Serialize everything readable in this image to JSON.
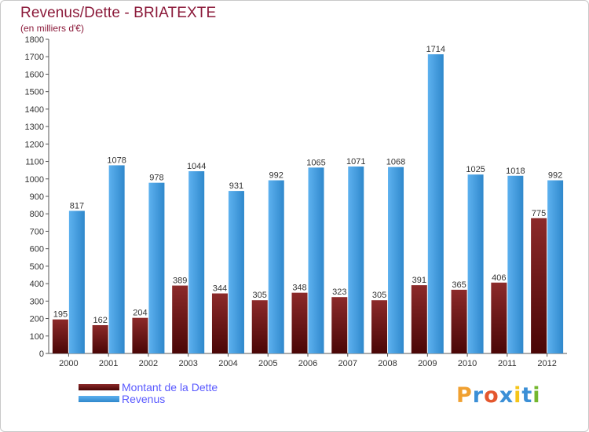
{
  "header": {
    "title": "Revenus/Dette - BRIATEXTE",
    "subtitle": "(en milliers d'€)"
  },
  "legend": {
    "items": [
      {
        "label": "Montant de la Dette",
        "color": "#7a1010"
      },
      {
        "label": "Revenus",
        "color": "#4aa3e6"
      }
    ]
  },
  "logo": {
    "letters": [
      "P",
      "r",
      "o",
      "x",
      "i",
      "t",
      "i"
    ],
    "colors": [
      "#f0a030",
      "#3b8fd6",
      "#e4572e",
      "#3b8fd6",
      "#f5c518",
      "#3b8fd6",
      "#74b72e"
    ]
  },
  "chart_data": {
    "type": "bar",
    "title": "Revenus/Dette - BRIATEXTE",
    "subtitle": "(en milliers d'€)",
    "categories": [
      "2000",
      "2001",
      "2002",
      "2003",
      "2004",
      "2005",
      "2006",
      "2007",
      "2008",
      "2009",
      "2010",
      "2011",
      "2012"
    ],
    "series": [
      {
        "name": "Montant de la Dette",
        "color": "#7a1010",
        "values": [
          195,
          162,
          204,
          389,
          344,
          305,
          348,
          323,
          305,
          391,
          365,
          406,
          775
        ]
      },
      {
        "name": "Revenus",
        "color": "#4aa3e6",
        "values": [
          817,
          1078,
          978,
          1044,
          931,
          992,
          1065,
          1071,
          1068,
          1714,
          1025,
          1018,
          992
        ]
      }
    ],
    "ylim": [
      0,
      1800
    ],
    "yticks": [
      0,
      100,
      200,
      300,
      400,
      500,
      600,
      700,
      800,
      900,
      1000,
      1100,
      1200,
      1300,
      1400,
      1500,
      1600,
      1700,
      1800
    ],
    "grid": false,
    "legend_position": "bottom-left"
  }
}
